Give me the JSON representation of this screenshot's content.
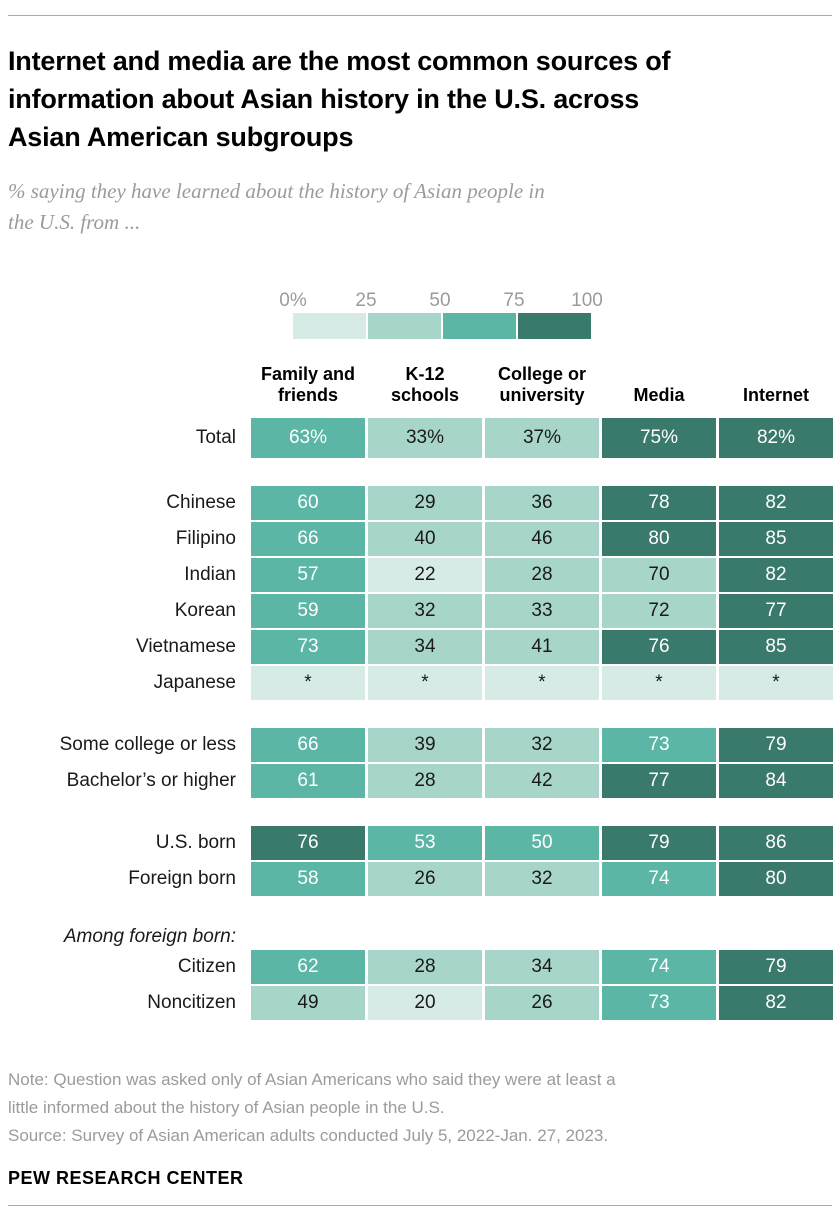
{
  "header": {
    "title": "Internet and media are the most common sources of\ninformation about Asian history in the U.S. across\nAsian American subgroups",
    "subtitle": "% saying they have learned about the history of Asian people in\nthe U.S. from ..."
  },
  "chart_data": {
    "type": "heatmap",
    "unit": "%",
    "title": "Internet and media are the most common sources of information about Asian history in the U.S. across Asian American subgroups",
    "subtitle": "% saying they have learned about the history of Asian people in the U.S. from ...",
    "columns": [
      "Family and friends",
      "K-12 schools",
      "College or university",
      "Media",
      "Internet"
    ],
    "columns_display": [
      "Family and\nfriends",
      "K-12\nschools",
      "College or\nuniversity",
      "Media",
      "Internet"
    ],
    "scale": {
      "ticks": [
        "0%",
        "25",
        "50",
        "75",
        "100"
      ],
      "colors": [
        "#d6ebe5",
        "#a8d5c9",
        "#5cb6a5",
        "#3a7a6c"
      ],
      "range": [
        0,
        100
      ]
    },
    "groups": [
      {
        "rows": [
          {
            "label": "Total",
            "total": true,
            "values": [
              "63%",
              "33%",
              "37%",
              "75%",
              "82%"
            ],
            "levels": [
              2,
              1,
              1,
              3,
              3
            ]
          }
        ]
      },
      {
        "rows": [
          {
            "label": "Chinese",
            "values": [
              "60",
              "29",
              "36",
              "78",
              "82"
            ],
            "levels": [
              2,
              1,
              1,
              3,
              3
            ]
          },
          {
            "label": "Filipino",
            "values": [
              "66",
              "40",
              "46",
              "80",
              "85"
            ],
            "levels": [
              2,
              1,
              1,
              3,
              3
            ]
          },
          {
            "label": "Indian",
            "values": [
              "57",
              "22",
              "28",
              "70",
              "82"
            ],
            "levels": [
              2,
              0,
              1,
              1,
              3
            ]
          },
          {
            "label": "Korean",
            "values": [
              "59",
              "32",
              "33",
              "72",
              "77"
            ],
            "levels": [
              2,
              1,
              1,
              1,
              3
            ]
          },
          {
            "label": "Vietnamese",
            "values": [
              "73",
              "34",
              "41",
              "76",
              "85"
            ],
            "levels": [
              2,
              1,
              1,
              3,
              3
            ]
          },
          {
            "label": "Japanese",
            "values": [
              "*",
              "*",
              "*",
              "*",
              "*"
            ],
            "levels": [
              0,
              0,
              0,
              0,
              0
            ]
          }
        ]
      },
      {
        "rows": [
          {
            "label": "Some college or less",
            "values": [
              "66",
              "39",
              "32",
              "73",
              "79"
            ],
            "levels": [
              2,
              1,
              1,
              2,
              3
            ]
          },
          {
            "label": "Bachelor’s or higher",
            "values": [
              "61",
              "28",
              "42",
              "77",
              "84"
            ],
            "levels": [
              2,
              1,
              1,
              3,
              3
            ]
          }
        ]
      },
      {
        "rows": [
          {
            "label": "U.S. born",
            "values": [
              "76",
              "53",
              "50",
              "79",
              "86"
            ],
            "levels": [
              3,
              2,
              2,
              3,
              3
            ]
          },
          {
            "label": "Foreign born",
            "values": [
              "58",
              "26",
              "32",
              "74",
              "80"
            ],
            "levels": [
              2,
              1,
              1,
              2,
              3
            ]
          }
        ]
      },
      {
        "note": "Among foreign born:",
        "rows": [
          {
            "label": "Citizen",
            "values": [
              "62",
              "28",
              "34",
              "74",
              "79"
            ],
            "levels": [
              2,
              1,
              1,
              2,
              3
            ]
          },
          {
            "label": "Noncitizen",
            "values": [
              "49",
              "20",
              "26",
              "73",
              "82"
            ],
            "levels": [
              1,
              0,
              1,
              2,
              3
            ]
          }
        ]
      }
    ]
  },
  "footer": {
    "note": "Note: Question was asked only of Asian Americans who said they were at least a\nlittle informed about the history of Asian people in the U.S.",
    "source": "Source: Survey of Asian American adults conducted July 5, 2022-Jan. 27, 2023.",
    "brand": "PEW RESEARCH CENTER"
  }
}
